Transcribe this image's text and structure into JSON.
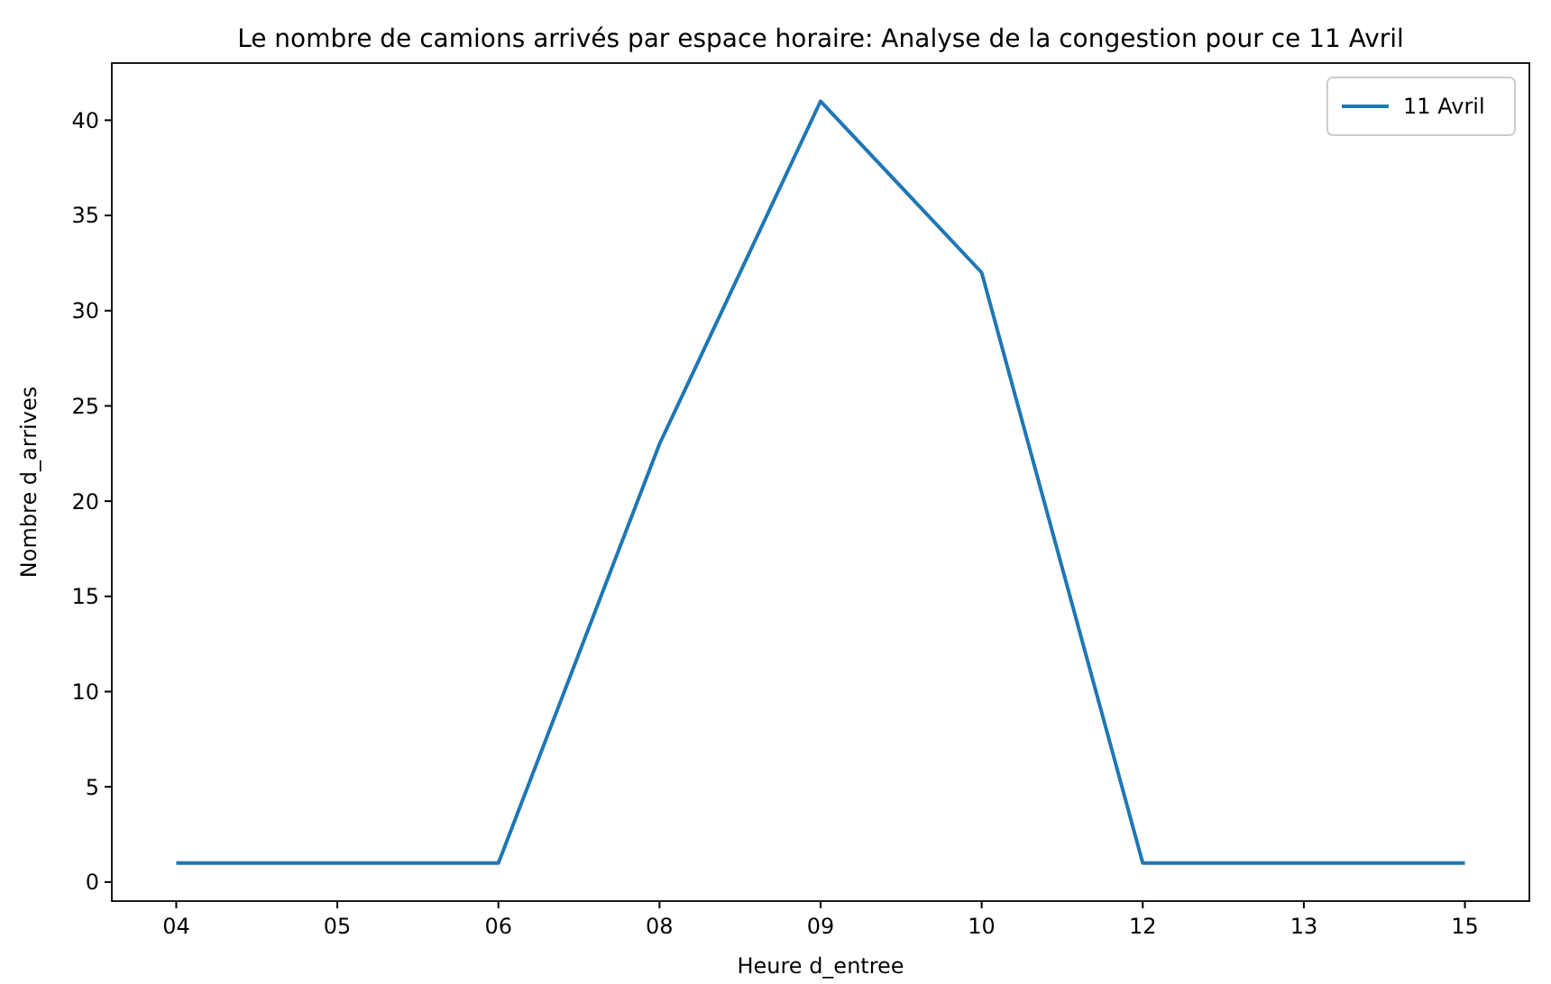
{
  "chart_data": {
    "type": "line",
    "title": "Le nombre de camions arrivés par espace horaire: Analyse de la congestion pour ce 11 Avril",
    "xlabel": "Heure d_entree",
    "ylabel": "Nombre d_arrives",
    "categories": [
      "04",
      "05",
      "06",
      "08",
      "09",
      "10",
      "12",
      "13",
      "15"
    ],
    "series": [
      {
        "name": "11 Avril",
        "color": "#1f77b4",
        "values": [
          1,
          1,
          1,
          23,
          41,
          32,
          1,
          1,
          1
        ]
      }
    ],
    "ylim": [
      -1,
      43
    ],
    "yticks": [
      0,
      5,
      10,
      15,
      20,
      25,
      30,
      35,
      40
    ],
    "legend": "top right",
    "grid": false
  }
}
